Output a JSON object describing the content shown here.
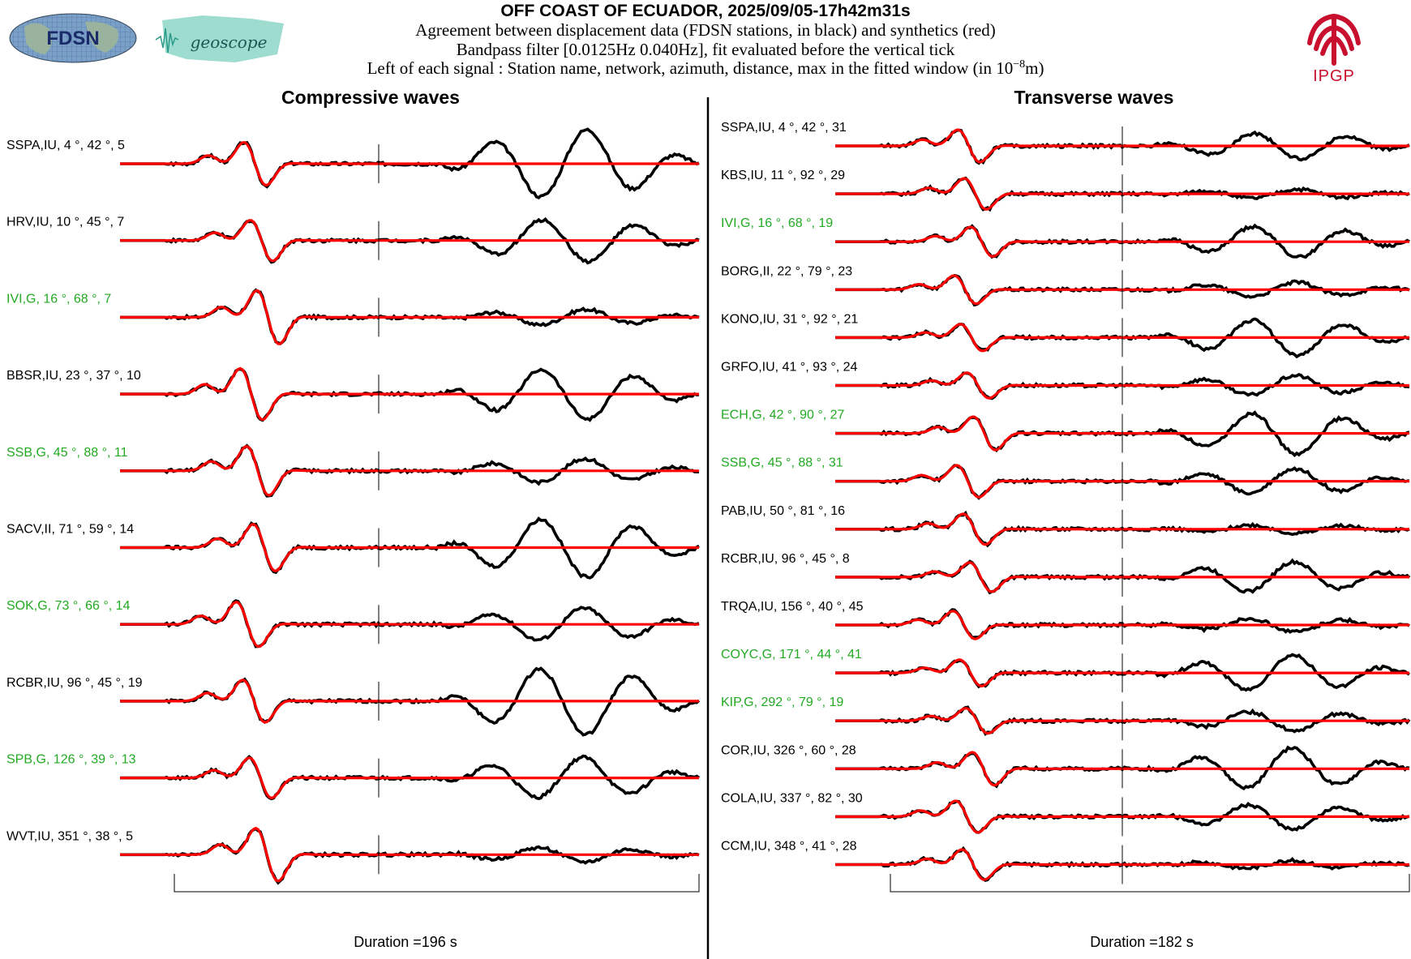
{
  "header": {
    "title": "OFF COAST OF ECUADOR, 2025/09/05-17h42m31s",
    "line1": "Agreement between displacement data (FDSN stations, in black) and synthetics (red)",
    "line2": "Bandpass filter [0.0125Hz 0.040Hz], fit evaluated before the vertical tick",
    "line3_prefix": "Left of each signal : Station name, network, azimuth, distance, max in the fitted window (in 10",
    "line3_exp": "−8",
    "line3_suffix": "m)"
  },
  "logos": {
    "fdsn": "FDSN",
    "geoscope": "geoscope",
    "ipgp": "IPGP"
  },
  "colors": {
    "data": "#000000",
    "synthetic": "#ff0000",
    "geoscope_station": "#22aa22",
    "ipgp_red": "#c8102e",
    "geoscope_teal": "#5fbfb0"
  },
  "chart_data": [
    {
      "type": "line",
      "title": "Compressive waves",
      "duration_label": "Duration =196 s",
      "series": [
        {
          "name": "data",
          "color": "#000000"
        },
        {
          "name": "synthetics",
          "color": "#ff0000"
        }
      ],
      "traces": [
        {
          "station": "SSPA,IU, 4 °, 42 °, 5",
          "green": false
        },
        {
          "station": "HRV,IU, 10 °, 45 °, 7",
          "green": false
        },
        {
          "station": "IVI,G, 16 °, 68 °, 7",
          "green": true
        },
        {
          "station": "BBSR,IU, 23 °, 37 °, 10",
          "green": false
        },
        {
          "station": "SSB,G, 45 °, 88 °, 11",
          "green": true
        },
        {
          "station": "SACV,II, 71 °, 59 °, 14",
          "green": false
        },
        {
          "station": "SOK,G, 73 °, 66 °, 14",
          "green": true
        },
        {
          "station": "RCBR,IU, 96 °, 45 °, 19",
          "green": false
        },
        {
          "station": "SPB,G, 126 °, 39 °, 13",
          "green": true
        },
        {
          "station": "WVT,IU, 351 °, 38 °, 5",
          "green": false
        }
      ]
    },
    {
      "type": "line",
      "title": "Transverse waves",
      "duration_label": "Duration =182 s",
      "series": [
        {
          "name": "data",
          "color": "#000000"
        },
        {
          "name": "synthetics",
          "color": "#ff0000"
        }
      ],
      "traces": [
        {
          "station": "SSPA,IU, 4 °, 42 °, 31",
          "green": false
        },
        {
          "station": "KBS,IU, 11 °, 92 °, 29",
          "green": false
        },
        {
          "station": "IVI,G, 16 °, 68 °, 19",
          "green": true
        },
        {
          "station": "BORG,II, 22 °, 79 °, 23",
          "green": false
        },
        {
          "station": "KONO,IU, 31 °, 92 °, 21",
          "green": false
        },
        {
          "station": "GRFO,IU, 41 °, 93 °, 24",
          "green": false
        },
        {
          "station": "ECH,G, 42 °, 90 °, 27",
          "green": true
        },
        {
          "station": "SSB,G, 45 °, 88 °, 31",
          "green": true
        },
        {
          "station": "PAB,IU, 50 °, 81 °, 16",
          "green": false
        },
        {
          "station": "RCBR,IU, 96 °, 45 °, 8",
          "green": false
        },
        {
          "station": "TRQA,IU, 156 °, 40 °, 45",
          "green": false
        },
        {
          "station": "COYC,G, 171 °, 44 °, 41",
          "green": true
        },
        {
          "station": "KIP,G, 292 °, 79 °, 19",
          "green": true
        },
        {
          "station": "COR,IU, 326 °, 60 °, 28",
          "green": false
        },
        {
          "station": "COLA,IU, 337 °, 82 °, 30",
          "green": false
        },
        {
          "station": "CCM,IU, 348 °, 41 °, 28",
          "green": false
        }
      ]
    }
  ]
}
